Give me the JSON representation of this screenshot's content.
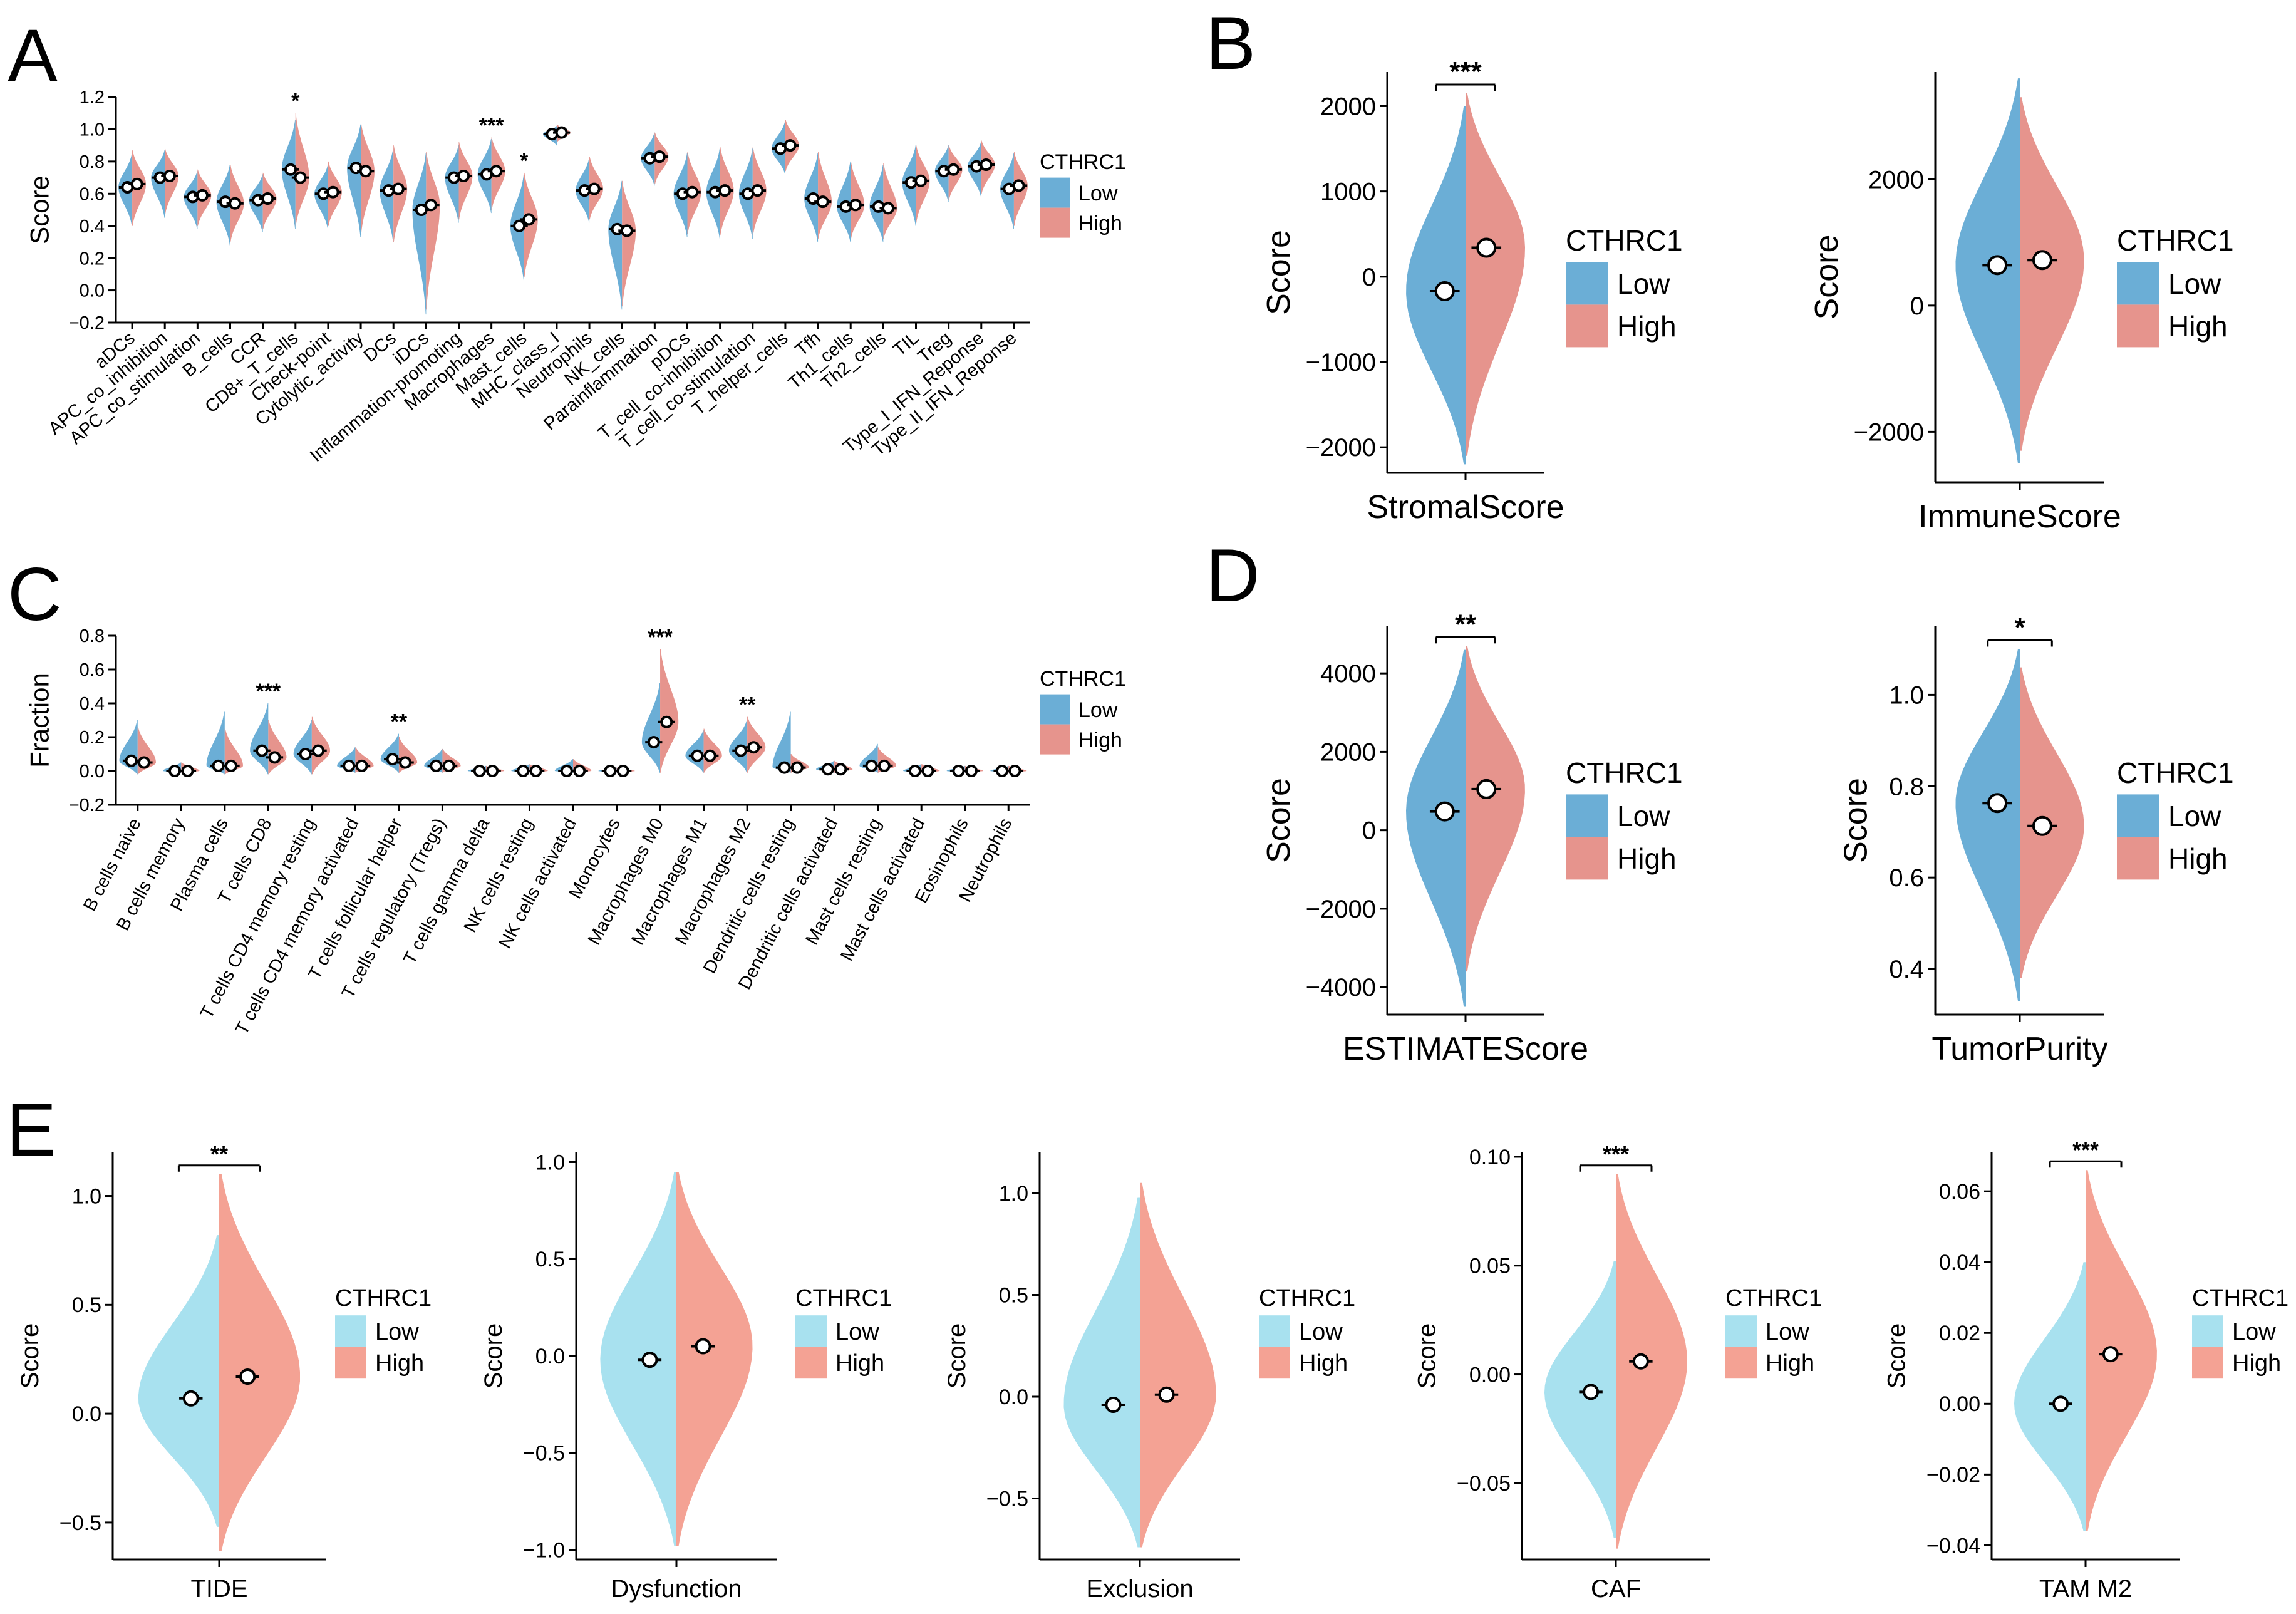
{
  "figure": {
    "colors": {
      "low_tcga": "#6BAED6",
      "high_tcga": "#E6948D",
      "low_tide": "#A8E1EF",
      "high_tide": "#F4A294",
      "point_fill": "#ffffff",
      "point_stroke": "#000000"
    }
  },
  "chart_data": [
    {
      "id": "A",
      "panel_label": "A",
      "type": "split-violin",
      "ylabel": "Score",
      "ylim": [
        -0.2,
        1.2
      ],
      "yticks": [
        -0.2,
        0.0,
        0.2,
        0.4,
        0.6,
        0.8,
        1.0,
        1.2
      ],
      "ytick_labels": [
        "−0.2",
        "0.0",
        "0.2",
        "0.4",
        "0.6",
        "0.8",
        "1.0",
        "1.2"
      ],
      "legend": {
        "title": "CTHRC1",
        "low": "Low",
        "high": "High"
      },
      "categories": [
        "aDCs",
        "APC_co_inhibition",
        "APC_co_stimulation",
        "B_cells",
        "CCR",
        "CD8+_T_cells",
        "Check-point",
        "Cytolytic_activity",
        "DCs",
        "iDCs",
        "Inflammation-promoting",
        "Macrophages",
        "Mast_cells",
        "MHC_class_I",
        "Neutrophils",
        "NK_cells",
        "Parainflammation",
        "pDCs",
        "T_cell_co-inhibition",
        "T_cell_co-stimulation",
        "T_helper_cells",
        "Tfh",
        "Th1_cells",
        "Th2_cells",
        "TIL",
        "Treg",
        "Type_I_IFN_Reponse",
        "Type_II_IFN_Reponse"
      ],
      "low_median": [
        0.64,
        0.7,
        0.58,
        0.55,
        0.56,
        0.75,
        0.6,
        0.76,
        0.62,
        0.5,
        0.7,
        0.72,
        0.4,
        0.97,
        0.62,
        0.38,
        0.82,
        0.6,
        0.61,
        0.6,
        0.88,
        0.57,
        0.52,
        0.52,
        0.67,
        0.74,
        0.77,
        0.63
      ],
      "high_median": [
        0.66,
        0.71,
        0.59,
        0.54,
        0.57,
        0.7,
        0.61,
        0.74,
        0.63,
        0.53,
        0.71,
        0.74,
        0.44,
        0.98,
        0.63,
        0.37,
        0.83,
        0.61,
        0.62,
        0.62,
        0.9,
        0.55,
        0.53,
        0.51,
        0.68,
        0.75,
        0.78,
        0.65
      ],
      "low_range": [
        [
          0.4,
          0.85
        ],
        [
          0.45,
          0.87
        ],
        [
          0.38,
          0.74
        ],
        [
          0.28,
          0.78
        ],
        [
          0.36,
          0.72
        ],
        [
          0.38,
          1.06
        ],
        [
          0.38,
          0.78
        ],
        [
          0.33,
          1.03
        ],
        [
          0.3,
          0.88
        ],
        [
          -0.15,
          0.85
        ],
        [
          0.42,
          0.9
        ],
        [
          0.48,
          0.94
        ],
        [
          0.06,
          0.72
        ],
        [
          0.9,
          1.02
        ],
        [
          0.42,
          0.82
        ],
        [
          -0.12,
          0.68
        ],
        [
          0.65,
          0.98
        ],
        [
          0.33,
          0.85
        ],
        [
          0.32,
          0.88
        ],
        [
          0.32,
          0.88
        ],
        [
          0.72,
          1.05
        ],
        [
          0.3,
          0.85
        ],
        [
          0.3,
          0.8
        ],
        [
          0.3,
          0.78
        ],
        [
          0.4,
          0.9
        ],
        [
          0.55,
          0.9
        ],
        [
          0.58,
          0.92
        ],
        [
          0.38,
          0.85
        ]
      ],
      "high_range": [
        [
          0.4,
          0.87
        ],
        [
          0.47,
          0.88
        ],
        [
          0.4,
          0.75
        ],
        [
          0.3,
          0.78
        ],
        [
          0.38,
          0.73
        ],
        [
          0.4,
          1.1
        ],
        [
          0.4,
          0.8
        ],
        [
          0.35,
          1.04
        ],
        [
          0.3,
          0.9
        ],
        [
          -0.12,
          0.86
        ],
        [
          0.44,
          0.92
        ],
        [
          0.5,
          0.95
        ],
        [
          0.08,
          0.73
        ],
        [
          0.92,
          1.03
        ],
        [
          0.44,
          0.83
        ],
        [
          -0.1,
          0.68
        ],
        [
          0.66,
          0.98
        ],
        [
          0.35,
          0.86
        ],
        [
          0.34,
          0.89
        ],
        [
          0.34,
          0.89
        ],
        [
          0.74,
          1.06
        ],
        [
          0.32,
          0.86
        ],
        [
          0.32,
          0.8
        ],
        [
          0.32,
          0.79
        ],
        [
          0.42,
          0.9
        ],
        [
          0.56,
          0.9
        ],
        [
          0.6,
          0.93
        ],
        [
          0.4,
          0.86
        ]
      ],
      "significance": [
        "",
        "",
        "",
        "",
        "",
        "*",
        "",
        "",
        "",
        "",
        "",
        "***",
        "*",
        "",
        "",
        "",
        "",
        "",
        "",
        "",
        "",
        "",
        "",
        "",
        "",
        "",
        "",
        ""
      ]
    },
    {
      "id": "C",
      "panel_label": "C",
      "type": "split-violin",
      "ylabel": "Fraction",
      "ylim": [
        -0.2,
        0.8
      ],
      "yticks": [
        -0.2,
        0.0,
        0.2,
        0.4,
        0.6,
        0.8
      ],
      "ytick_labels": [
        "−0.2",
        "0.0",
        "0.2",
        "0.4",
        "0.6",
        "0.8"
      ],
      "legend": {
        "title": "CTHRC1",
        "low": "Low",
        "high": "High"
      },
      "categories": [
        "B cells naive",
        "B cells memory",
        "Plasma cells",
        "T cells CD8",
        "T cells CD4 memory resting",
        "T cells CD4 memory activated",
        "T cells follicular helper",
        "T cells regulatory (Tregs)",
        "T cells gamma delta",
        "NK cells resting",
        "NK cells activated",
        "Monocytes",
        "Macrophages M0",
        "Macrophages M1",
        "Macrophages M2",
        "Dendritic cells resting",
        "Dendritic cells activated",
        "Mast cells resting",
        "Mast cells activated",
        "Eosinophils",
        "Neutrophils"
      ],
      "low_median": [
        0.06,
        0.0,
        0.03,
        0.12,
        0.1,
        0.03,
        0.07,
        0.03,
        0.0,
        0.0,
        0.0,
        0.0,
        0.17,
        0.09,
        0.12,
        0.02,
        0.01,
        0.03,
        0.0,
        0.0,
        0.0
      ],
      "high_median": [
        0.05,
        0.0,
        0.03,
        0.08,
        0.12,
        0.03,
        0.05,
        0.03,
        0.0,
        0.0,
        0.0,
        0.0,
        0.29,
        0.09,
        0.14,
        0.02,
        0.01,
        0.03,
        0.0,
        0.0,
        0.0
      ],
      "low_range": [
        [
          -0.02,
          0.3
        ],
        [
          -0.01,
          0.05
        ],
        [
          -0.02,
          0.35
        ],
        [
          -0.02,
          0.4
        ],
        [
          -0.02,
          0.3
        ],
        [
          -0.01,
          0.14
        ],
        [
          -0.01,
          0.22
        ],
        [
          -0.01,
          0.13
        ],
        [
          -0.01,
          0.03
        ],
        [
          -0.01,
          0.04
        ],
        [
          -0.01,
          0.07
        ],
        [
          -0.01,
          0.02
        ],
        [
          -0.01,
          0.52
        ],
        [
          -0.01,
          0.24
        ],
        [
          -0.01,
          0.3
        ],
        [
          -0.01,
          0.35
        ],
        [
          -0.01,
          0.06
        ],
        [
          -0.01,
          0.16
        ],
        [
          -0.01,
          0.04
        ],
        [
          -0.01,
          0.03
        ],
        [
          -0.01,
          0.03
        ]
      ],
      "high_range": [
        [
          -0.02,
          0.26
        ],
        [
          -0.01,
          0.05
        ],
        [
          -0.02,
          0.25
        ],
        [
          -0.02,
          0.3
        ],
        [
          -0.02,
          0.32
        ],
        [
          -0.01,
          0.14
        ],
        [
          -0.01,
          0.2
        ],
        [
          -0.01,
          0.13
        ],
        [
          -0.01,
          0.03
        ],
        [
          -0.01,
          0.04
        ],
        [
          -0.01,
          0.07
        ],
        [
          -0.01,
          0.02
        ],
        [
          -0.01,
          0.72
        ],
        [
          -0.01,
          0.25
        ],
        [
          -0.01,
          0.32
        ],
        [
          -0.01,
          0.1
        ],
        [
          -0.01,
          0.06
        ],
        [
          -0.01,
          0.14
        ],
        [
          -0.01,
          0.04
        ],
        [
          -0.01,
          0.03
        ],
        [
          -0.01,
          0.03
        ]
      ],
      "significance": [
        "",
        "",
        "",
        "***",
        "",
        "",
        "**",
        "",
        "",
        "",
        "",
        "",
        "***",
        "",
        "**",
        "",
        "",
        "",
        "",
        "",
        ""
      ]
    },
    {
      "id": "B1",
      "panel_label": "B",
      "type": "split-violin",
      "xlabel": "StromalScore",
      "ylabel": "Score",
      "ylim": [
        -2300,
        2400
      ],
      "yticks": [
        -2000,
        -1000,
        0,
        1000,
        2000
      ],
      "ytick_labels": [
        "−2000",
        "−1000",
        "0",
        "1000",
        "2000"
      ],
      "legend": {
        "title": "CTHRC1",
        "low": "Low",
        "high": "High"
      },
      "low": {
        "median": -170,
        "range": [
          -2200,
          2000
        ]
      },
      "high": {
        "median": 340,
        "range": [
          -2100,
          2150
        ]
      },
      "significance": "***"
    },
    {
      "id": "B2",
      "panel_label": "",
      "type": "split-violin",
      "xlabel": "ImmuneScore",
      "ylabel": "Score",
      "ylim": [
        -2800,
        3700
      ],
      "yticks": [
        -2000,
        0,
        2000
      ],
      "ytick_labels": [
        "−2000",
        "0",
        "2000"
      ],
      "legend": {
        "title": "CTHRC1",
        "low": "Low",
        "high": "High"
      },
      "low": {
        "median": 640,
        "range": [
          -2500,
          3600
        ]
      },
      "high": {
        "median": 720,
        "range": [
          -2300,
          3300
        ]
      },
      "significance": ""
    },
    {
      "id": "D1",
      "panel_label": "D",
      "type": "split-violin",
      "xlabel": "ESTIMATEScore",
      "ylabel": "Score",
      "ylim": [
        -4700,
        5200
      ],
      "yticks": [
        -4000,
        -2000,
        0,
        2000,
        4000
      ],
      "ytick_labels": [
        "−4000",
        "−2000",
        "0",
        "2000",
        "4000"
      ],
      "legend": {
        "title": "CTHRC1",
        "low": "Low",
        "high": "High"
      },
      "low": {
        "median": 480,
        "range": [
          -4500,
          4600
        ]
      },
      "high": {
        "median": 1050,
        "range": [
          -3600,
          4700
        ]
      },
      "significance": "**"
    },
    {
      "id": "D2",
      "panel_label": "",
      "type": "split-violin",
      "xlabel": "TumorPurity",
      "ylabel": "Score",
      "ylim": [
        0.3,
        1.15
      ],
      "yticks": [
        0.4,
        0.6,
        0.8,
        1.0
      ],
      "ytick_labels": [
        "0.4",
        "0.6",
        "0.8",
        "1.0"
      ],
      "legend": {
        "title": "CTHRC1",
        "low": "Low",
        "high": "High"
      },
      "low": {
        "median": 0.763,
        "range": [
          0.33,
          1.1
        ]
      },
      "high": {
        "median": 0.713,
        "range": [
          0.38,
          1.06
        ]
      },
      "significance": "*"
    },
    {
      "id": "E1",
      "panel_label": "E",
      "type": "split-violin",
      "xlabel": "TIDE",
      "ylabel": "Score",
      "ylim": [
        -0.67,
        1.2
      ],
      "yticks": [
        -0.5,
        0.0,
        0.5,
        1.0
      ],
      "ytick_labels": [
        "−0.5",
        "0.0",
        "0.5",
        "1.0"
      ],
      "legend": {
        "title": "CTHRC1",
        "low": "Low",
        "high": "High"
      },
      "low": {
        "median": 0.07,
        "range": [
          -0.52,
          0.82
        ]
      },
      "high": {
        "median": 0.17,
        "range": [
          -0.63,
          1.1
        ]
      },
      "significance": "**"
    },
    {
      "id": "E2",
      "panel_label": "",
      "type": "split-violin",
      "xlabel": "Dysfunction",
      "ylabel": "Score",
      "ylim": [
        -1.05,
        1.05
      ],
      "yticks": [
        -1.0,
        -0.5,
        0.0,
        0.5,
        1.0
      ],
      "ytick_labels": [
        "−1.0",
        "−0.5",
        "0.0",
        "0.5",
        "1.0"
      ],
      "legend": {
        "title": "CTHRC1",
        "low": "Low",
        "high": "High"
      },
      "low": {
        "median": -0.02,
        "range": [
          -0.98,
          0.95
        ]
      },
      "high": {
        "median": 0.05,
        "range": [
          -0.98,
          0.95
        ]
      },
      "significance": ""
    },
    {
      "id": "E3",
      "panel_label": "",
      "type": "split-violin",
      "xlabel": "Exclusion",
      "ylabel": "Score",
      "ylim": [
        -0.8,
        1.2
      ],
      "yticks": [
        -0.5,
        0.0,
        0.5,
        1.0
      ],
      "ytick_labels": [
        "−0.5",
        "0.0",
        "0.5",
        "1.0"
      ],
      "legend": {
        "title": "CTHRC1",
        "low": "Low",
        "high": "High"
      },
      "low": {
        "median": -0.04,
        "range": [
          -0.74,
          0.98
        ]
      },
      "high": {
        "median": 0.01,
        "range": [
          -0.74,
          1.05
        ]
      },
      "significance": ""
    },
    {
      "id": "E4",
      "panel_label": "",
      "type": "split-violin",
      "xlabel": "CAF",
      "ylabel": "Score",
      "ylim": [
        -0.085,
        0.102
      ],
      "yticks": [
        -0.05,
        0.0,
        0.05,
        0.1
      ],
      "ytick_labels": [
        "−0.05",
        "0.00",
        "0.05",
        "0.10"
      ],
      "legend": {
        "title": "CTHRC1",
        "low": "Low",
        "high": "High"
      },
      "low": {
        "median": -0.008,
        "range": [
          -0.075,
          0.052
        ]
      },
      "high": {
        "median": 0.006,
        "range": [
          -0.08,
          0.092
        ]
      },
      "significance": "***"
    },
    {
      "id": "E5",
      "panel_label": "",
      "type": "split-violin",
      "xlabel": "TAM M2",
      "ylabel": "Score",
      "ylim": [
        -0.044,
        0.071
      ],
      "yticks": [
        -0.04,
        -0.02,
        0.0,
        0.02,
        0.04,
        0.06
      ],
      "ytick_labels": [
        "−0.04",
        "−0.02",
        "0.00",
        "0.02",
        "0.04",
        "0.06"
      ],
      "legend": {
        "title": "CTHRC1",
        "low": "Low",
        "high": "High"
      },
      "low": {
        "median": 0.0,
        "range": [
          -0.036,
          0.04
        ]
      },
      "high": {
        "median": 0.014,
        "range": [
          -0.036,
          0.066
        ]
      },
      "significance": "***"
    }
  ]
}
